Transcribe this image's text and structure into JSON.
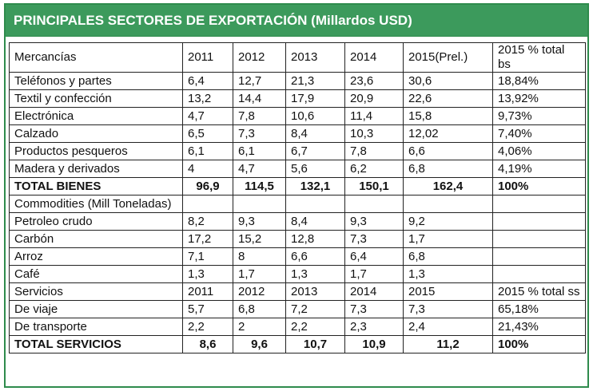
{
  "title": "PRINCIPALES SECTORES DE EXPORTACIÓN (Millardos USD)",
  "colors": {
    "header_bg": "#3c9a5c",
    "border": "#2e8b4c"
  },
  "mercancias_header": {
    "label": "Mercancías",
    "years": [
      "2011",
      "2012",
      "2013",
      "2014",
      "2015(Prel.)"
    ],
    "share": "2015 % total bs"
  },
  "mercancias_rows": [
    {
      "name": "Teléfonos y partes",
      "values": [
        "6,4",
        "12,7",
        "21,3",
        "23,6",
        "30,6"
      ],
      "share": "18,84%"
    },
    {
      "name": "Textil y confección",
      "values": [
        "13,2",
        "14,4",
        "17,9",
        "20,9",
        "22,6"
      ],
      "share": "13,92%"
    },
    {
      "name": "Electrónica",
      "values": [
        "4,7",
        "7,8",
        "10,6",
        "11,4",
        "15,8"
      ],
      "share": "9,73%"
    },
    {
      "name": "Calzado",
      "values": [
        "6,5",
        "7,3",
        "8,4",
        "10,3",
        "12,02"
      ],
      "share": "7,40%"
    },
    {
      "name": "Productos pesqueros",
      "values": [
        "6,1",
        "6,1",
        "6,7",
        "7,8",
        "6,6"
      ],
      "share": "4,06%"
    },
    {
      "name": "Madera y derivados",
      "values": [
        "4",
        "4,7",
        "5,6",
        "6,2",
        "6,8"
      ],
      "share": "4,19%"
    }
  ],
  "total_bienes": {
    "name": "TOTAL BIENES",
    "values": [
      "96,9",
      "114,5",
      "132,1",
      "150,1",
      "162,4"
    ],
    "share": "100%"
  },
  "commodities_label": "Commodities  (Mill Toneladas)",
  "commodities_rows": [
    {
      "name": "Petroleo crudo",
      "values": [
        "8,2",
        "9,3",
        "8,4",
        "9,3",
        "9,2"
      ]
    },
    {
      "name": "Carbón",
      "values": [
        "17,2",
        "15,2",
        "12,8",
        "7,3",
        "1,7"
      ]
    },
    {
      "name": "Arroz",
      "values": [
        "7,1",
        "8",
        "6,6",
        "6,4",
        "6,8"
      ]
    },
    {
      "name": "Café",
      "values": [
        "1,3",
        "1,7",
        "1,3",
        "1,7",
        "1,3"
      ]
    }
  ],
  "servicios_header": {
    "label": "Servicios",
    "years": [
      "2011",
      "2012",
      "2013",
      "2014",
      "2015"
    ],
    "share": "2015 % total ss"
  },
  "servicios_rows": [
    {
      "name": "De viaje",
      "values": [
        "5,7",
        "6,8",
        "7,2",
        "7,3",
        "7,3"
      ],
      "share": "65,18%"
    },
    {
      "name": "De transporte",
      "values": [
        "2,2",
        "2",
        "2,2",
        "2,3",
        "2,4"
      ],
      "share": "21,43%"
    }
  ],
  "total_servicios": {
    "name": "TOTAL SERVICIOS",
    "values": [
      "8,6",
      "9,6",
      "10,7",
      "10,9",
      "11,2"
    ],
    "share": "100%"
  }
}
